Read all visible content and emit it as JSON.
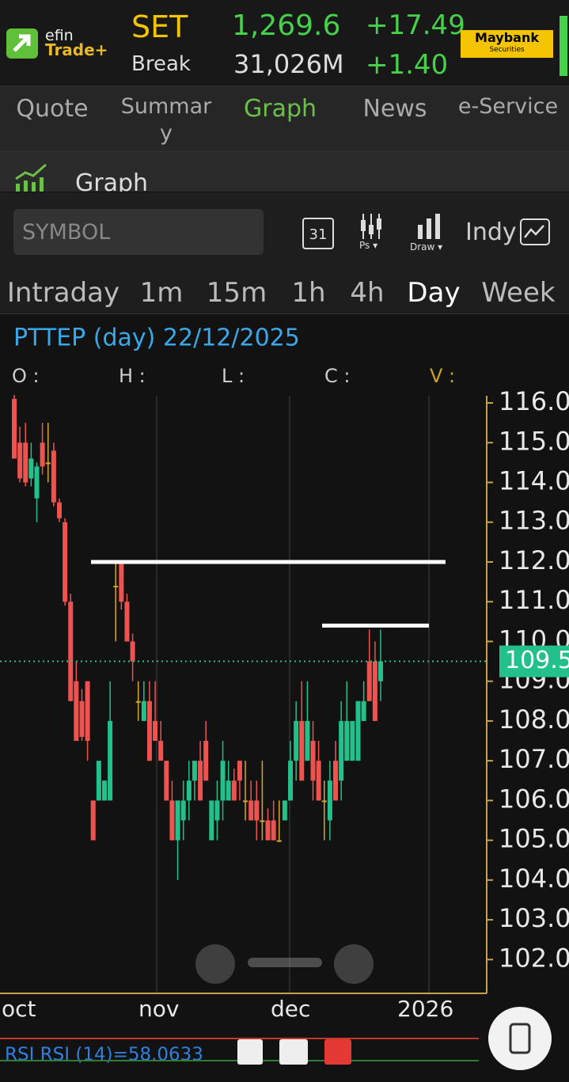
{
  "header": {
    "logo_top": "efin",
    "logo_bottom": "Trade+",
    "index_name": "SET",
    "index_value": "1,269.6",
    "index_change": "+17.49",
    "break_label": "Break",
    "break_value": "31,026M",
    "break_change": "+1.40",
    "broker_name": "Maybank",
    "broker_sub": "Securities"
  },
  "tabs": [
    "Quote",
    "Summary",
    "Graph",
    "News",
    "e-Service"
  ],
  "active_tab": 2,
  "section_title": "Graph",
  "toolbar": {
    "symbol_placeholder": "SYMBOL",
    "calendar_day": "31",
    "ps": "Ps",
    "draw": "Draw",
    "indy": "Indy"
  },
  "timeframes": [
    "Intraday",
    "1m",
    "15m",
    "1h",
    "4h",
    "Day",
    "Week"
  ],
  "active_timeframe": 5,
  "chart_data": {
    "type": "candlestick",
    "title": "PTTEP (day) 22/12/2025",
    "ohlcv_labels": [
      "O :",
      "H :",
      "L :",
      "C :",
      "V :"
    ],
    "x_labels": [
      "oct",
      "nov",
      "dec",
      "2026"
    ],
    "open": [
      116.1,
      115.0,
      115.0,
      114.1,
      113.6,
      115.0,
      114.5,
      114.8,
      113.5,
      113.0,
      111.0,
      109.0,
      108.5,
      109.0,
      106.0,
      106.0,
      106.0,
      106.0,
      111.4,
      112.0,
      111.0,
      110.0,
      108.5,
      108.0,
      108.5,
      108.0,
      107.5,
      107.0,
      106.0,
      105.0,
      105.5,
      106.0,
      106.5,
      107.0,
      107.5,
      105.0,
      105.5,
      106.0,
      106.0,
      106.5,
      107.0,
      106.0,
      106.0,
      106.0,
      105.5,
      105.5,
      105.5,
      105.0,
      105.5,
      106.0,
      107.0,
      108.0,
      107.0,
      107.5,
      107.0,
      106.0,
      105.5,
      107.0,
      106.5,
      107.0,
      107.0,
      107.0,
      108.0,
      109.5,
      109.5,
      109.0
    ],
    "high": [
      116.2,
      115.4,
      115.5,
      115.0,
      114.5,
      115.5,
      115.5,
      115.0,
      113.6,
      113.1,
      111.2,
      109.5,
      108.8,
      109.0,
      106.0,
      107.0,
      106.5,
      109.0,
      112.0,
      112.0,
      111.2,
      110.2,
      109.0,
      109.0,
      109.0,
      109.0,
      108.0,
      107.0,
      106.5,
      106.0,
      106.5,
      107.0,
      107.0,
      107.5,
      108.0,
      106.0,
      106.5,
      107.5,
      107.0,
      106.8,
      107.0,
      107.0,
      106.5,
      106.5,
      107.0,
      105.8,
      106.0,
      106.0,
      106.0,
      107.5,
      108.5,
      109.0,
      109.0,
      108.0,
      107.5,
      106.5,
      107.0,
      107.5,
      108.5,
      109.0,
      108.0,
      108.5,
      109.0,
      110.3,
      110.0,
      110.3
    ],
    "low": [
      114.6,
      114.0,
      113.9,
      113.9,
      113.0,
      114.2,
      114.0,
      113.4,
      113.0,
      110.9,
      108.5,
      107.5,
      107.5,
      107.0,
      105.0,
      106.0,
      106.0,
      106.0,
      110.0,
      110.8,
      110.0,
      109.0,
      108.0,
      108.0,
      107.0,
      107.5,
      107.0,
      106.0,
      105.0,
      104.0,
      105.0,
      105.5,
      106.0,
      106.0,
      106.5,
      105.0,
      105.0,
      105.5,
      106.0,
      106.0,
      106.0,
      105.5,
      105.5,
      105.0,
      105.0,
      105.0,
      105.0,
      105.0,
      105.5,
      106.0,
      106.5,
      106.5,
      107.0,
      106.0,
      106.0,
      105.0,
      105.0,
      106.0,
      106.0,
      107.0,
      107.0,
      107.0,
      108.0,
      108.5,
      108.0,
      108.5
    ],
    "close": [
      114.6,
      114.1,
      114.0,
      114.6,
      114.4,
      114.4,
      114.5,
      113.5,
      113.1,
      111.0,
      108.5,
      107.5,
      107.6,
      107.5,
      105.0,
      107.0,
      106.5,
      108.0,
      111.4,
      111.0,
      110.0,
      109.5,
      108.5,
      108.5,
      107.0,
      107.5,
      107.0,
      106.0,
      105.0,
      106.0,
      106.0,
      106.5,
      107.0,
      106.0,
      106.5,
      106.0,
      106.0,
      107.0,
      106.5,
      106.0,
      106.5,
      106.0,
      105.5,
      105.5,
      105.5,
      105.0,
      105.0,
      105.0,
      106.0,
      107.0,
      108.0,
      106.5,
      108.0,
      106.5,
      106.0,
      106.0,
      106.5,
      106.0,
      108.0,
      108.0,
      108.0,
      108.5,
      108.5,
      108.5,
      108.0,
      109.5
    ],
    "up_color": "#22c08a",
    "down_color": "#ef5350",
    "doji_color": "#d4a82a",
    "ylim": [
      101.15,
      116.18
    ],
    "yticks": [
      {
        "value": 102,
        "label": "102.00"
      },
      {
        "value": 103,
        "label": "103.00"
      },
      {
        "value": 104,
        "label": "104.00"
      },
      {
        "value": 105,
        "label": "105.00"
      },
      {
        "value": 106,
        "label": "106.00"
      },
      {
        "value": 107,
        "label": "107.00"
      },
      {
        "value": 108,
        "label": "108.00"
      },
      {
        "value": 109,
        "label": "109.00"
      },
      {
        "value": 110,
        "label": "110.00"
      },
      {
        "value": 111,
        "label": "111.00"
      },
      {
        "value": 112,
        "label": "112.00"
      },
      {
        "value": 113,
        "label": "113.00"
      },
      {
        "value": 114,
        "label": "114.00"
      },
      {
        "value": 115,
        "label": "115.00"
      },
      {
        "value": 116,
        "label": "116.00"
      }
    ],
    "last_price": 109.5,
    "drawn_lines": [
      112.0,
      110.4
    ],
    "indicator_label": "RSI RSI (14)=58.0633"
  }
}
